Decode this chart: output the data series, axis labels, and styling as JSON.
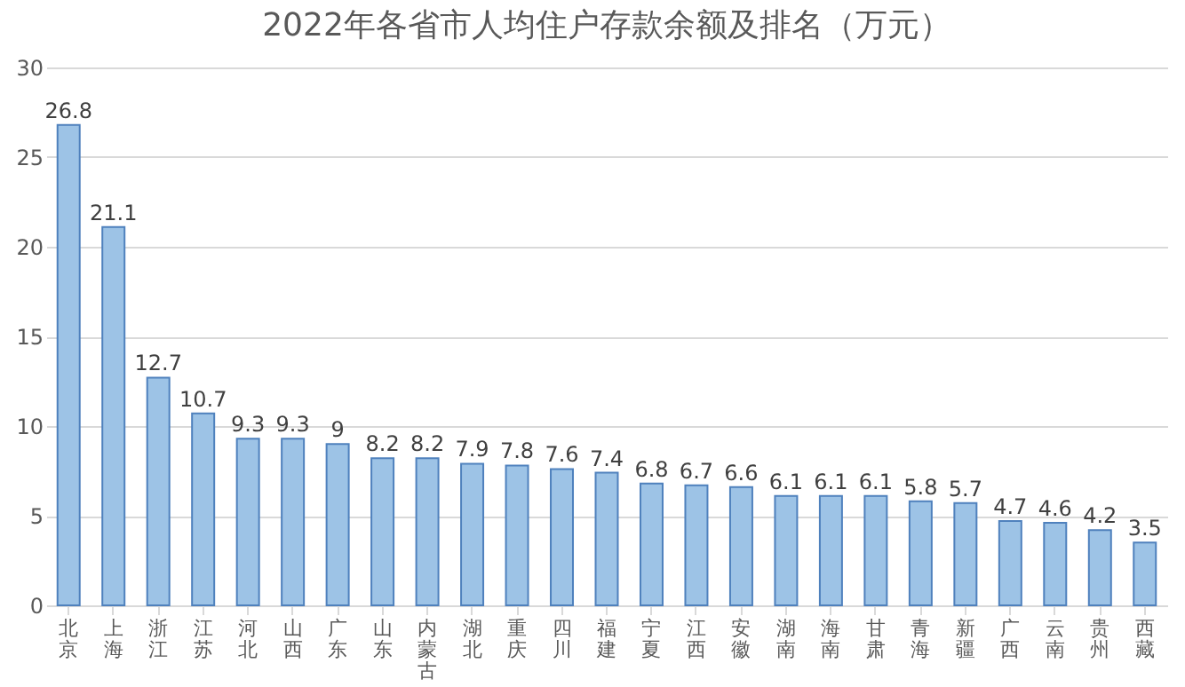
{
  "chart_data": {
    "type": "bar",
    "title": "2022年各省市人均住户存款余额及排名（万元）",
    "categories": [
      "北京",
      "上海",
      "浙江",
      "江苏",
      "河北",
      "山西",
      "广东",
      "山东",
      "内蒙古",
      "湖北",
      "重庆",
      "四川",
      "福建",
      "宁夏",
      "江西",
      "安徽",
      "湖南",
      "海南",
      "甘肃",
      "青海",
      "新疆",
      "广西",
      "云南",
      "贵州",
      "西藏"
    ],
    "values": [
      26.8,
      21.1,
      12.7,
      10.7,
      9.3,
      9.3,
      9,
      8.2,
      8.2,
      7.9,
      7.8,
      7.6,
      7.4,
      6.8,
      6.7,
      6.6,
      6.1,
      6.1,
      6.1,
      5.8,
      5.7,
      4.7,
      4.6,
      4.2,
      3.5
    ],
    "color": "#9dc3e6",
    "ylim": [
      0,
      30
    ],
    "yticks": [
      0,
      5,
      10,
      15,
      20,
      25,
      30
    ],
    "grid": "y",
    "data_labels": true
  }
}
